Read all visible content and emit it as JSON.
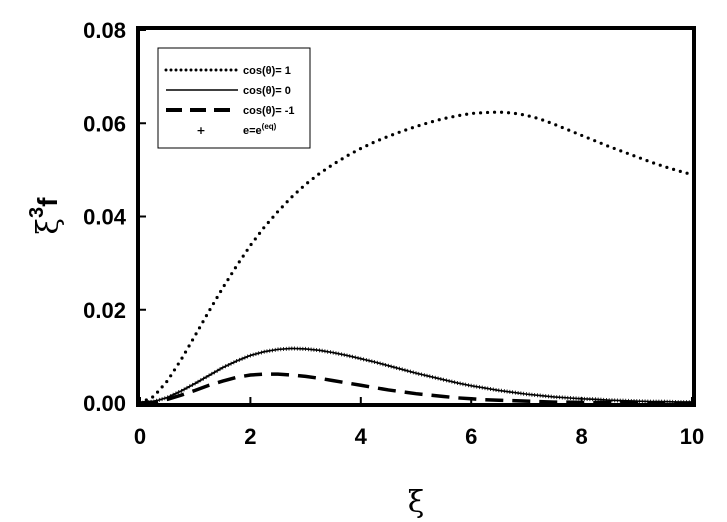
{
  "chart_data": {
    "type": "line",
    "title": "",
    "xlabel": "ξ",
    "ylabel_base": "ξ",
    "ylabel_exp": "3",
    "ylabel_var": "f",
    "xlim": [
      0,
      10
    ],
    "ylim": [
      0,
      0.08
    ],
    "xticks": [
      0,
      2,
      4,
      6,
      8,
      10
    ],
    "yticks": [
      0.0,
      0.02,
      0.04,
      0.06,
      0.08
    ],
    "xtick_labels": [
      "0",
      "2",
      "4",
      "6",
      "8",
      "10"
    ],
    "ytick_labels": [
      "0.00",
      "0.02",
      "0.04",
      "0.06",
      "0.08"
    ],
    "grid": false,
    "legend_position": "top-left",
    "series": [
      {
        "name": "cos(θ)= 1",
        "style": "dotted",
        "x": [
          0,
          0.25,
          0.5,
          0.75,
          1,
          1.25,
          1.5,
          1.75,
          2,
          2.25,
          2.5,
          2.75,
          3,
          3.25,
          3.5,
          3.75,
          4,
          4.25,
          4.5,
          4.75,
          5,
          5.25,
          5.5,
          5.75,
          6,
          6.25,
          6.5,
          6.75,
          7,
          7.25,
          7.5,
          7.75,
          8,
          8.25,
          8.5,
          8.75,
          9,
          9.25,
          9.5,
          9.75,
          10
        ],
        "values": [
          0,
          0.0014,
          0.0048,
          0.0094,
          0.0145,
          0.0197,
          0.0247,
          0.0294,
          0.0338,
          0.0377,
          0.0411,
          0.0442,
          0.0469,
          0.0492,
          0.0512,
          0.053,
          0.0546,
          0.056,
          0.0572,
          0.0583,
          0.0593,
          0.0602,
          0.061,
          0.0616,
          0.0621,
          0.0623,
          0.0624,
          0.0622,
          0.0617,
          0.0609,
          0.0598,
          0.0586,
          0.0574,
          0.0562,
          0.055,
          0.0539,
          0.0528,
          0.0517,
          0.0507,
          0.0498,
          0.049
        ]
      },
      {
        "name": "cos(θ)= 0",
        "style": "solid",
        "x": [
          0,
          0.25,
          0.5,
          0.75,
          1,
          1.25,
          1.5,
          1.75,
          2,
          2.25,
          2.5,
          2.75,
          3,
          3.25,
          3.5,
          3.75,
          4,
          4.25,
          4.5,
          4.75,
          5,
          5.25,
          5.5,
          5.75,
          6,
          6.25,
          6.5,
          6.75,
          7,
          7.25,
          7.5,
          7.75,
          8,
          8.25,
          8.5,
          8.75,
          9,
          9.25,
          9.5,
          9.75,
          10
        ],
        "values": [
          0,
          0.0003,
          0.0012,
          0.0026,
          0.0042,
          0.0059,
          0.0076,
          0.009,
          0.0102,
          0.011,
          0.0115,
          0.0117,
          0.0116,
          0.0113,
          0.0108,
          0.0102,
          0.0095,
          0.0088,
          0.008,
          0.0072,
          0.0064,
          0.0057,
          0.005,
          0.0043,
          0.0037,
          0.0032,
          0.0027,
          0.0023,
          0.0019,
          0.0016,
          0.0013,
          0.0011,
          0.0009,
          0.0008,
          0.0006,
          0.0005,
          0.0004,
          0.0003,
          0.0003,
          0.0002,
          0.0002
        ]
      },
      {
        "name": "cos(θ)= -1",
        "style": "dashed",
        "x": [
          0,
          0.25,
          0.5,
          0.75,
          1,
          1.25,
          1.5,
          1.75,
          2,
          2.25,
          2.5,
          2.75,
          3,
          3.25,
          3.5,
          3.75,
          4,
          4.25,
          4.5,
          4.75,
          5,
          5.25,
          5.5,
          5.75,
          6,
          6.25,
          6.5,
          6.75,
          7,
          7.25,
          7.5,
          7.75,
          8,
          8.25,
          8.5,
          8.75,
          9,
          9.25,
          9.5,
          9.75,
          10
        ],
        "values": [
          0,
          0.0002,
          0.0008,
          0.0017,
          0.0027,
          0.0038,
          0.0047,
          0.0055,
          0.006,
          0.0062,
          0.0062,
          0.006,
          0.0057,
          0.0053,
          0.0048,
          0.0043,
          0.0038,
          0.0033,
          0.0028,
          0.0024,
          0.002,
          0.0017,
          0.0014,
          0.0011,
          0.0009,
          0.0007,
          0.0006,
          0.0005,
          0.0004,
          0.0003,
          0.0002,
          0.0002,
          0.0001,
          0.0001,
          0.0001,
          0.0001,
          0.0001,
          0,
          0,
          0,
          0
        ]
      },
      {
        "name": "e=e",
        "name_sup": "(eq)",
        "style": "markers",
        "x": [
          0,
          0.25,
          0.5,
          0.75,
          1,
          1.25,
          1.5,
          1.75,
          2,
          2.25,
          2.5,
          2.75,
          3,
          3.25,
          3.5,
          3.75,
          4,
          4.25,
          4.5,
          4.75,
          5,
          5.25,
          5.5,
          5.75,
          6,
          6.25,
          6.5,
          6.75,
          7,
          7.25,
          7.5,
          7.75,
          8,
          8.25,
          8.5,
          8.75,
          9,
          9.25,
          9.5,
          9.75,
          10
        ],
        "values": [
          0,
          0.0003,
          0.0012,
          0.0026,
          0.0042,
          0.0059,
          0.0076,
          0.009,
          0.0102,
          0.011,
          0.0115,
          0.0117,
          0.0116,
          0.0113,
          0.0108,
          0.0102,
          0.0095,
          0.0088,
          0.008,
          0.0072,
          0.0064,
          0.0057,
          0.005,
          0.0043,
          0.0037,
          0.0032,
          0.0027,
          0.0023,
          0.0019,
          0.0016,
          0.0013,
          0.0011,
          0.0009,
          0.0008,
          0.0006,
          0.0005,
          0.0004,
          0.0003,
          0.0003,
          0.0002,
          0.0002
        ]
      }
    ]
  }
}
